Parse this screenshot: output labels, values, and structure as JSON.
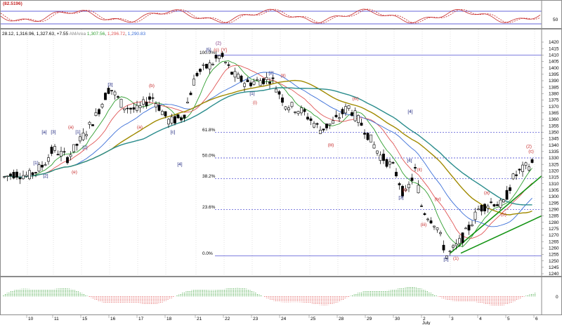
{
  "oscillator": {
    "value_label": "(82.5196)",
    "axis_label": "50"
  },
  "price_header": {
    "ohlc": "28.12, 1,316.96, 1,327.63, +7.55",
    "indicator_name": "AMArea",
    "ma_values": [
      "1,307.56",
      "1,296.72",
      "1,290.83"
    ]
  },
  "price_axis": {
    "min": 1240,
    "max": 1420,
    "step": 5,
    "labels": [
      "1420",
      "1415",
      "1410",
      "1405",
      "1400",
      "1395",
      "1390",
      "1385",
      "1380",
      "1375",
      "1370",
      "1365",
      "1360",
      "1355",
      "1350",
      "1345",
      "1340",
      "1335",
      "1330",
      "1325",
      "1320",
      "1315",
      "1310",
      "1305",
      "1300",
      "1295",
      "1290",
      "1285",
      "1280",
      "1275",
      "1270",
      "1265",
      "1260",
      "1255",
      "1250",
      "1245",
      "1240"
    ]
  },
  "fib_levels": [
    {
      "label": "100.0%",
      "price": 1410
    },
    {
      "label": "61.8%",
      "price": 1350
    },
    {
      "label": "50.0%",
      "price": 1330
    },
    {
      "label": "38.2%",
      "price": 1314
    },
    {
      "label": "23.6%",
      "price": 1290
    },
    {
      "label": "0.0%",
      "price": 1254
    }
  ],
  "volume_axis": {
    "label": "0"
  },
  "date_axis": {
    "labels": [
      "10",
      "11",
      "15",
      "16",
      "17",
      "18",
      "21",
      "22",
      "23",
      "24",
      "25",
      "28",
      "29",
      "30",
      "2",
      "3",
      "4",
      "5",
      "6"
    ],
    "month_label": "July"
  },
  "wave_labels": [
    {
      "text": "(2)",
      "price": 1418,
      "color": "#7b2d7b"
    },
    {
      "text": "[5]",
      "price": 1413,
      "color": "#1a237e"
    },
    {
      "text": "(c)",
      "price": 1413,
      "color": "#c62828"
    },
    {
      "text": "[Y]",
      "price": 1413,
      "color": "#c62828"
    },
    {
      "text": "[2]",
      "price": 1395,
      "color": "#1a237e"
    },
    {
      "text": "(ii)",
      "price": 1393,
      "color": "#c62828"
    },
    {
      "text": "[3]",
      "price": 1386,
      "color": "#1a237e"
    },
    {
      "text": "(b)",
      "price": 1385,
      "color": "#c62828"
    },
    {
      "text": "[1]",
      "price": 1379,
      "color": "#1a237e"
    },
    {
      "text": "(i)",
      "price": 1372,
      "color": "#c62828"
    },
    {
      "text": "(iv)",
      "price": 1375,
      "color": "#c62828"
    },
    {
      "text": "[4]",
      "price": 1365,
      "color": "#1a237e"
    },
    {
      "text": "(a)",
      "price": 1353,
      "color": "#c62828"
    },
    {
      "text": "[c]",
      "price": 1349,
      "color": "#1a237e"
    },
    {
      "text": "[a]",
      "price": 1349,
      "color": "#1a237e"
    },
    {
      "text": "(a)",
      "price": 1353,
      "color": "#c62828"
    },
    {
      "text": "[3]",
      "price": 1349,
      "color": "#1a237e"
    },
    {
      "text": "[1]",
      "price": 1349,
      "color": "#1a237e"
    },
    {
      "text": "(iii)",
      "price": 1339,
      "color": "#c62828"
    },
    {
      "text": "[2]",
      "price": 1337,
      "color": "#1a237e"
    },
    {
      "text": "[1]",
      "price": 1325,
      "color": "#1a237e"
    },
    {
      "text": "[4]",
      "price": 1324,
      "color": "#1a237e"
    },
    {
      "text": "[2]",
      "price": 1315,
      "color": "#1a237e"
    },
    {
      "text": "(e)",
      "price": 1318,
      "color": "#c62828"
    },
    {
      "text": "[4]",
      "price": 1327,
      "color": "#1a237e"
    },
    {
      "text": "(ii)",
      "price": 1320,
      "color": "#c62828"
    },
    {
      "text": "(i)",
      "price": 1304,
      "color": "#c62828"
    },
    {
      "text": "[3]",
      "price": 1298,
      "color": "#1a237e"
    },
    {
      "text": "(iv)",
      "price": 1297,
      "color": "#c62828"
    },
    {
      "text": "(iii)",
      "price": 1277,
      "color": "#c62828"
    },
    {
      "text": "[5]",
      "price": 1250,
      "color": "#1a237e"
    },
    {
      "text": "(1)",
      "price": 1251,
      "color": "#c62828"
    },
    {
      "text": "(a)",
      "price": 1302,
      "color": "#c62828"
    },
    {
      "text": "(b)",
      "price": 1285,
      "color": "#c62828"
    },
    {
      "text": "(2)",
      "price": 1338,
      "color": "#c62828"
    },
    {
      "text": "(c)",
      "price": 1334,
      "color": "#c62828"
    }
  ],
  "colors": {
    "bull": "#ffffff",
    "bear": "#000000",
    "ma_fast": "#2e9d2e",
    "ma_mid": "#e05555",
    "ma_slow": "#3b6fd8",
    "ma_long": "#a08a00",
    "ma_teal": "#2a8c8c",
    "fib": "#3333cc",
    "trend": "#149414",
    "osc_main": "#c62828",
    "vol_up": "#2e9d2e",
    "vol_down": "#e05555"
  }
}
